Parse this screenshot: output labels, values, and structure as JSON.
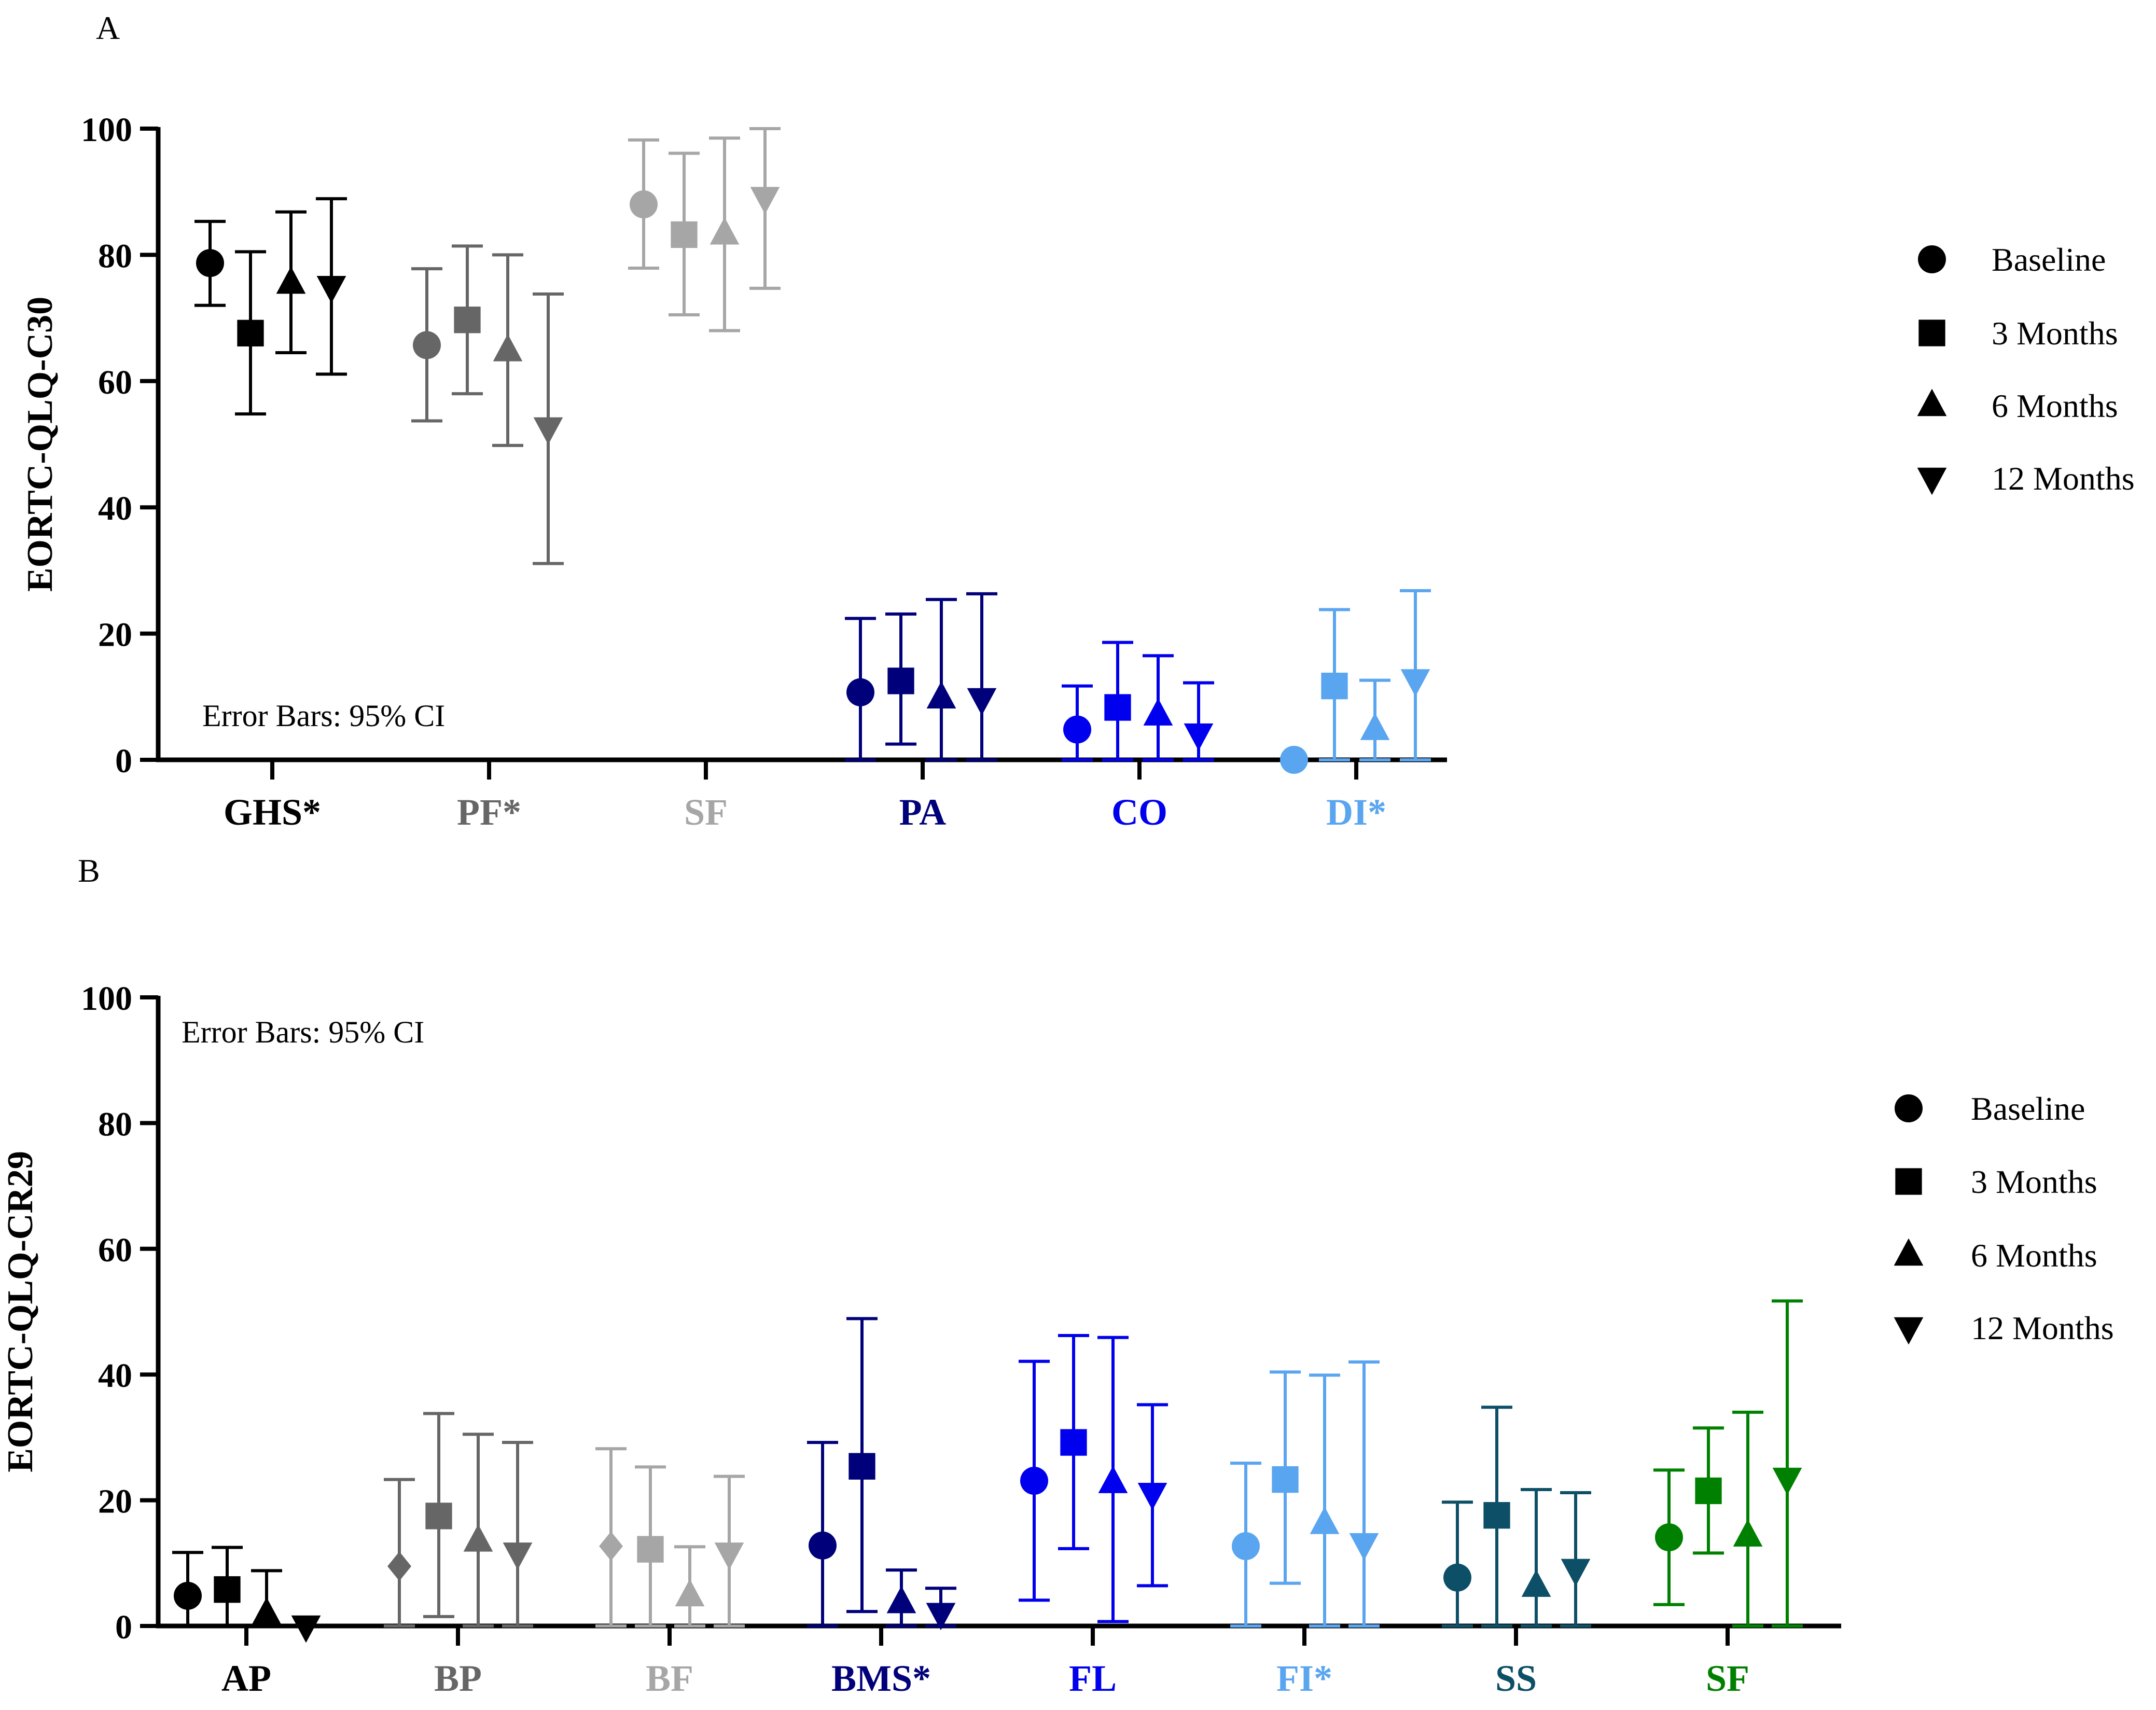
{
  "legend": {
    "entries": [
      {
        "label": "Baseline",
        "marker": "circle"
      },
      {
        "label": "3 Months",
        "marker": "square"
      },
      {
        "label": "6 Months",
        "marker": "triangle-up"
      },
      {
        "label": "12 Months",
        "marker": "triangle-down"
      }
    ]
  },
  "chart_data": [
    {
      "panel_label": "A",
      "type": "scatter",
      "ylabel": "EORTC-QLQ-C30",
      "ylim": [
        0,
        100
      ],
      "yticks": [
        0,
        20,
        40,
        60,
        80,
        100
      ],
      "annotation": "Error Bars: 95% CI",
      "series_names": [
        "Baseline",
        "3 Months",
        "6 Months",
        "12 Months"
      ],
      "groups": [
        {
          "label": "GHS*",
          "color": "#000000",
          "points": [
            {
              "series": "Baseline",
              "value": 78.7,
              "ci": [
                72.0,
                85.3
              ]
            },
            {
              "series": "3 Months",
              "value": 67.6,
              "ci": [
                54.8,
                80.5
              ]
            },
            {
              "series": "6 Months",
              "value": 75.5,
              "ci": [
                64.5,
                86.8
              ]
            },
            {
              "series": "12 Months",
              "value": 75.0,
              "ci": [
                61.1,
                88.9
              ]
            }
          ]
        },
        {
          "label": "PF*",
          "color": "#666666",
          "points": [
            {
              "series": "Baseline",
              "value": 65.7,
              "ci": [
                53.7,
                77.8
              ]
            },
            {
              "series": "3 Months",
              "value": 69.7,
              "ci": [
                58.0,
                81.4
              ]
            },
            {
              "series": "6 Months",
              "value": 64.8,
              "ci": [
                49.8,
                80.0
              ]
            },
            {
              "series": "12 Months",
              "value": 52.6,
              "ci": [
                31.1,
                73.8
              ]
            }
          ]
        },
        {
          "label": "SF",
          "color": "#a6a6a6",
          "points": [
            {
              "series": "Baseline",
              "value": 88.0,
              "ci": [
                77.9,
                98.2
              ]
            },
            {
              "series": "3 Months",
              "value": 83.2,
              "ci": [
                70.5,
                96.1
              ]
            },
            {
              "series": "6 Months",
              "value": 83.3,
              "ci": [
                68.0,
                98.5
              ]
            },
            {
              "series": "12 Months",
              "value": 89.1,
              "ci": [
                74.7,
                100
              ]
            }
          ]
        },
        {
          "label": "PA",
          "color": "#00007a",
          "points": [
            {
              "series": "Baseline",
              "value": 10.7,
              "ci": [
                0,
                22.4
              ]
            },
            {
              "series": "3 Months",
              "value": 12.5,
              "ci": [
                2.5,
                23.1
              ]
            },
            {
              "series": "6 Months",
              "value": 9.8,
              "ci": [
                0,
                25.4
              ]
            },
            {
              "series": "12 Months",
              "value": 9.7,
              "ci": [
                0,
                26.3
              ]
            }
          ]
        },
        {
          "label": "CO",
          "color": "#0000ee",
          "points": [
            {
              "series": "Baseline",
              "value": 4.8,
              "ci": [
                0,
                11.7
              ]
            },
            {
              "series": "3 Months",
              "value": 8.3,
              "ci": [
                0,
                18.6
              ]
            },
            {
              "series": "6 Months",
              "value": 7.1,
              "ci": [
                0,
                16.5
              ]
            },
            {
              "series": "12 Months",
              "value": 4.1,
              "ci": [
                0,
                12.2
              ]
            }
          ]
        },
        {
          "label": "DI*",
          "color": "#5aa5f0",
          "points": [
            {
              "series": "Baseline",
              "value": 0,
              "ci": [
                0,
                0
              ]
            },
            {
              "series": "3 Months",
              "value": 11.7,
              "ci": [
                0,
                23.8
              ]
            },
            {
              "series": "6 Months",
              "value": 4.8,
              "ci": [
                0,
                12.6
              ]
            },
            {
              "series": "12 Months",
              "value": 12.7,
              "ci": [
                0,
                26.8
              ]
            }
          ]
        }
      ]
    },
    {
      "panel_label": "B",
      "type": "scatter",
      "ylabel": "EORTC-QLQ-CR29",
      "ylim": [
        0,
        100
      ],
      "yticks": [
        0,
        20,
        40,
        60,
        80,
        100
      ],
      "annotation": "Error Bars: 95% CI",
      "series_names": [
        "Baseline",
        "3 Months",
        "6 Months",
        "12 Months"
      ],
      "groups": [
        {
          "label": "AP",
          "color": "#000000",
          "points": [
            {
              "series": "Baseline",
              "value": 4.8,
              "ci": [
                0,
                11.7
              ]
            },
            {
              "series": "3 Months",
              "value": 5.8,
              "ci": [
                0,
                12.5
              ]
            },
            {
              "series": "6 Months",
              "value": 1.9,
              "ci": [
                0,
                8.8
              ]
            },
            {
              "series": "12 Months",
              "value": 0,
              "ci": [
                0,
                0
              ]
            }
          ]
        },
        {
          "label": "BP",
          "color": "#666666",
          "points": [
            {
              "series": "Baseline",
              "value": 9.5,
              "ci": [
                0,
                23.3
              ],
              "marker": "diamond"
            },
            {
              "series": "3 Months",
              "value": 17.5,
              "ci": [
                1.5,
                33.8
              ]
            },
            {
              "series": "6 Months",
              "value": 13.5,
              "ci": [
                0,
                30.5
              ]
            },
            {
              "series": "12 Months",
              "value": 11.6,
              "ci": [
                0,
                29.2
              ]
            }
          ]
        },
        {
          "label": "BF",
          "color": "#a6a6a6",
          "points": [
            {
              "series": "Baseline",
              "value": 12.7,
              "ci": [
                0,
                28.2
              ],
              "marker": "diamond"
            },
            {
              "series": "3 Months",
              "value": 12.2,
              "ci": [
                0,
                25.3
              ]
            },
            {
              "series": "6 Months",
              "value": 4.8,
              "ci": [
                0,
                12.6
              ]
            },
            {
              "series": "12 Months",
              "value": 11.6,
              "ci": [
                0,
                23.8
              ]
            }
          ]
        },
        {
          "label": "BMS*",
          "color": "#00007a",
          "points": [
            {
              "series": "Baseline",
              "value": 12.8,
              "ci": [
                0,
                29.2
              ]
            },
            {
              "series": "3 Months",
              "value": 25.4,
              "ci": [
                2.3,
                48.9
              ]
            },
            {
              "series": "6 Months",
              "value": 3.7,
              "ci": [
                0,
                8.9
              ]
            },
            {
              "series": "12 Months",
              "value": 2.0,
              "ci": [
                0,
                6.0
              ]
            }
          ]
        },
        {
          "label": "FL",
          "color": "#0000ee",
          "points": [
            {
              "series": "Baseline",
              "value": 23.1,
              "ci": [
                4.1,
                42.1
              ]
            },
            {
              "series": "3 Months",
              "value": 29.2,
              "ci": [
                12.3,
                46.2
              ]
            },
            {
              "series": "6 Months",
              "value": 22.8,
              "ci": [
                0.7,
                45.9
              ]
            },
            {
              "series": "12 Months",
              "value": 21.1,
              "ci": [
                6.4,
                35.2
              ]
            }
          ]
        },
        {
          "label": "FI*",
          "color": "#5aa5f0",
          "points": [
            {
              "series": "Baseline",
              "value": 12.7,
              "ci": [
                0,
                25.9
              ]
            },
            {
              "series": "3 Months",
              "value": 23.3,
              "ci": [
                6.8,
                40.4
              ]
            },
            {
              "series": "6 Months",
              "value": 16.3,
              "ci": [
                0,
                39.9
              ]
            },
            {
              "series": "12 Months",
              "value": 13.1,
              "ci": [
                0,
                42.0
              ]
            }
          ]
        },
        {
          "label": "SS",
          "color": "#0d4f66",
          "points": [
            {
              "series": "Baseline",
              "value": 7.7,
              "ci": [
                0,
                19.7
              ]
            },
            {
              "series": "3 Months",
              "value": 17.6,
              "ci": [
                0,
                34.8
              ]
            },
            {
              "series": "6 Months",
              "value": 6.3,
              "ci": [
                0,
                21.7
              ]
            },
            {
              "series": "12 Months",
              "value": 9.0,
              "ci": [
                0,
                21.2
              ]
            }
          ]
        },
        {
          "label": "SF",
          "color": "#008000",
          "points": [
            {
              "series": "Baseline",
              "value": 14.1,
              "ci": [
                3.4,
                24.8
              ]
            },
            {
              "series": "3 Months",
              "value": 21.5,
              "ci": [
                11.6,
                31.5
              ]
            },
            {
              "series": "6 Months",
              "value": 14.3,
              "ci": [
                0,
                34.0
              ]
            },
            {
              "series": "12 Months",
              "value": 23.5,
              "ci": [
                0,
                51.7
              ]
            }
          ]
        }
      ]
    }
  ]
}
